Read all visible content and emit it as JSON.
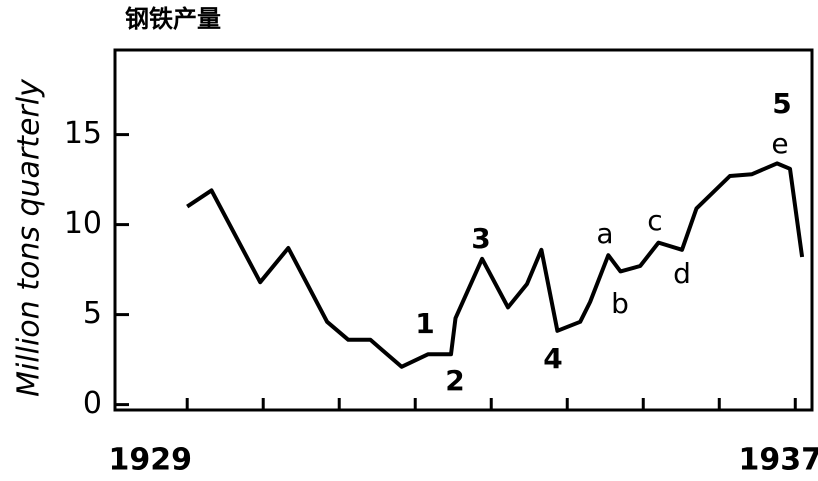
{
  "chart_data": {
    "type": "line",
    "title": "钢铁产量",
    "ylabel": "Million tons quarterly",
    "x": [
      1929.0,
      1929.32,
      1929.96,
      1930.33,
      1930.84,
      1931.12,
      1931.41,
      1931.82,
      1932.17,
      1932.47,
      1932.53,
      1932.88,
      1933.22,
      1933.47,
      1933.66,
      1933.87,
      1934.17,
      1934.3,
      1934.54,
      1934.7,
      1934.96,
      1935.2,
      1935.51,
      1935.7,
      1936.14,
      1936.43,
      1936.76,
      1936.93,
      1937.09
    ],
    "values": [
      11.0,
      11.9,
      6.8,
      8.7,
      4.6,
      3.6,
      3.6,
      2.1,
      2.8,
      2.8,
      4.8,
      8.1,
      5.4,
      6.7,
      8.6,
      4.1,
      4.6,
      5.7,
      8.3,
      7.4,
      7.7,
      9.0,
      8.6,
      10.9,
      12.7,
      12.8,
      13.4,
      13.1,
      8.2
    ],
    "color": "#000000",
    "xlim": [
      1928.05,
      1937.22
    ],
    "xticks": [
      1929,
      1937
    ],
    "xminorticks": [
      1930,
      1931,
      1932,
      1933,
      1934,
      1935,
      1936
    ],
    "ylim": [
      -0.3,
      19.7
    ],
    "yticks": [
      0,
      5,
      10,
      15
    ],
    "annotations": [
      "1",
      "2",
      "3",
      "4",
      "a",
      "b",
      "c",
      "d",
      "5",
      "e"
    ]
  }
}
